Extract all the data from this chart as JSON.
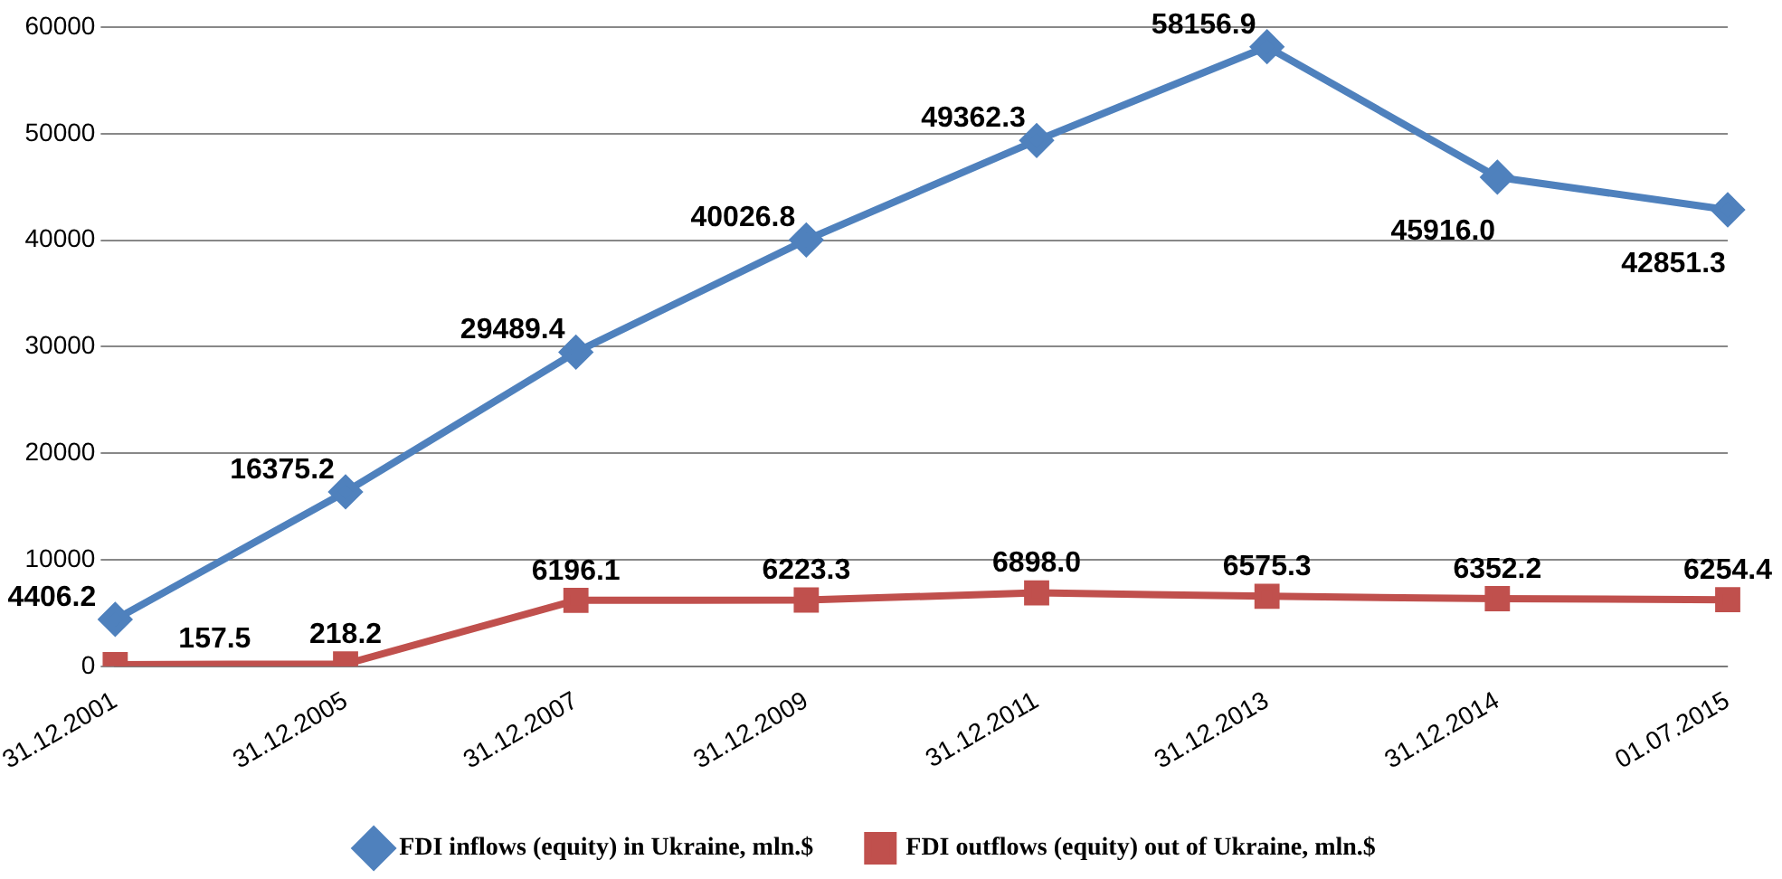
{
  "chart_data": {
    "type": "line",
    "categories": [
      "31.12.2001",
      "31.12.2005",
      "31.12.2007",
      "31.12.2009",
      "31.12.2011",
      "31.12.2013",
      "31.12.2014",
      "01.07.2015"
    ],
    "series": [
      {
        "name": "FDI inflows (equity) in Ukraine, mln.$",
        "color": "#4f81bd",
        "marker": "diamond",
        "values": [
          4406.2,
          16375.2,
          29489.4,
          40026.8,
          49362.3,
          58156.9,
          45916,
          42851.3
        ],
        "value_labels": [
          "4406.2",
          "16375.2",
          "29489.4",
          "40026.8",
          "49362.3",
          "58156.9",
          "45916.0",
          "42851.3"
        ]
      },
      {
        "name": "FDI outflows (equity) out of Ukraine, mln.$",
        "color": "#c0504d",
        "marker": "square",
        "values": [
          157.5,
          218.2,
          6196.1,
          6223.3,
          6898,
          6575.3,
          6352.2,
          6254.4
        ],
        "value_labels": [
          "157.5",
          "218.2",
          "6196.1",
          "6223.3",
          "6898.0",
          "6575.3",
          "6352.2",
          "6254.4"
        ]
      }
    ],
    "ylim": [
      0,
      60000
    ],
    "yticks": [
      0,
      10000,
      20000,
      30000,
      40000,
      50000,
      60000
    ],
    "grid": "y",
    "legend": "bottom"
  }
}
